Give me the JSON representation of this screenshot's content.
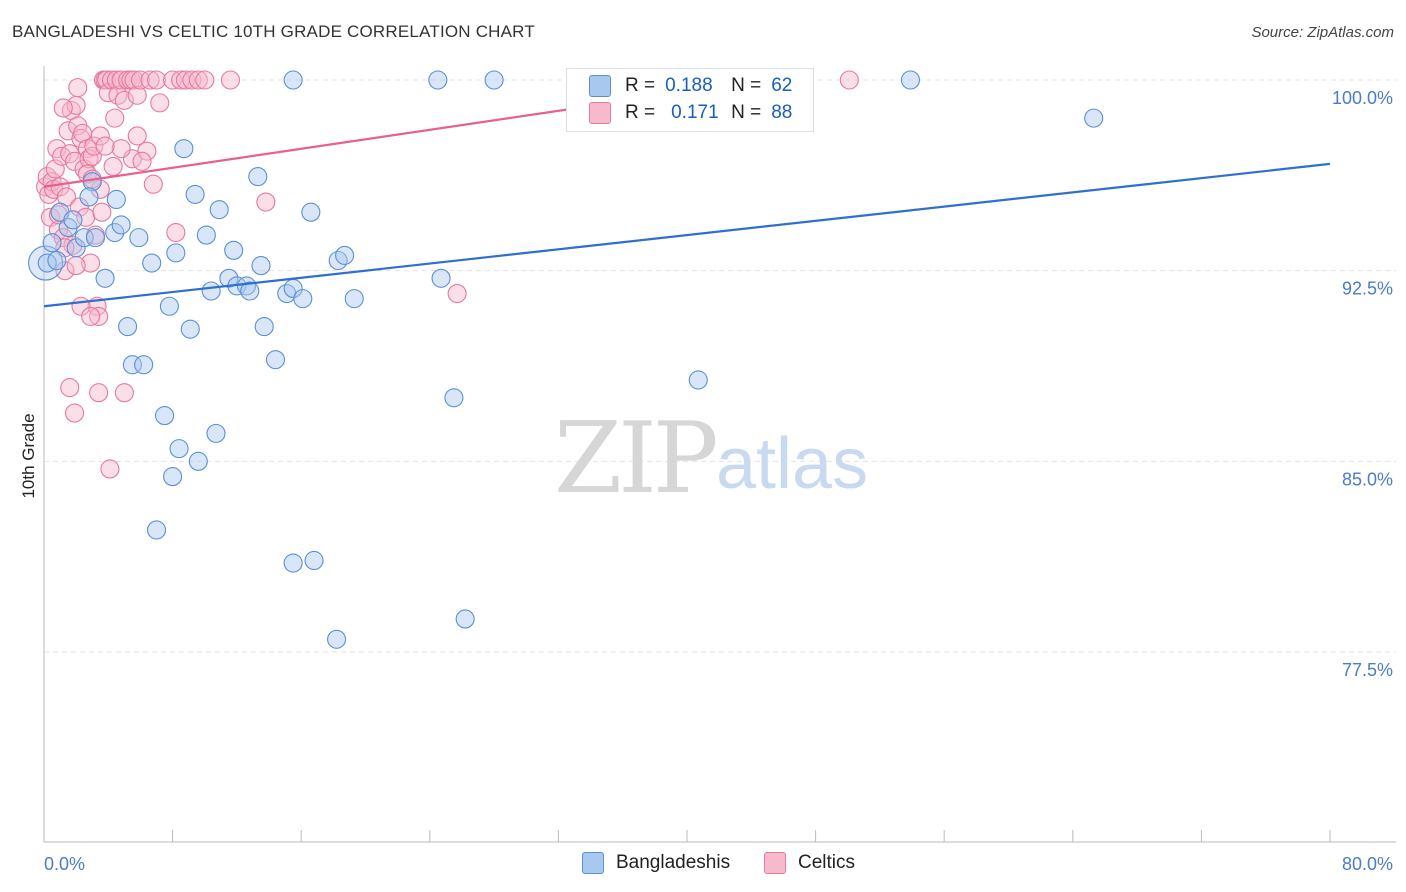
{
  "header": {
    "title": "BANGLADESHI VS CELTIC 10TH GRADE CORRELATION CHART",
    "source": "Source: ZipAtlas.com"
  },
  "watermark": {
    "zip": "ZIP",
    "atlas": "atlas"
  },
  "legend": {
    "rows": [
      {
        "r_label": "R =",
        "r_value": "0.188",
        "n_label": "N =",
        "n_value": "62"
      },
      {
        "r_label": "R =",
        "r_value": "0.171",
        "n_label": "N =",
        "n_value": "88"
      }
    ]
  },
  "bottom_legend": {
    "items": [
      "Bangladeshis",
      "Celtics"
    ]
  },
  "colors": {
    "blue_fill": "#a9c8f0",
    "blue_stroke": "#5b8fd6",
    "blue_line": "#2f6fcf",
    "pink_fill": "#f7b9cc",
    "pink_stroke": "#e8789d",
    "pink_line": "#e8608c"
  },
  "chart_data": {
    "type": "scatter",
    "title": "BANGLADESHI VS CELTIC 10TH GRADE CORRELATION CHART",
    "xlabel": "",
    "ylabel": "10th Grade",
    "xlim": [
      0,
      80
    ],
    "ylim": [
      70,
      101
    ],
    "x_tick_labels": [
      "0.0%",
      "80.0%"
    ],
    "y_ticks": [
      77.5,
      85.0,
      92.5,
      100.0
    ],
    "y_tick_labels": [
      "77.5%",
      "85.0%",
      "92.5%",
      "100.0%"
    ],
    "grid": true,
    "series": [
      {
        "name": "Bangladeshis",
        "r": 0.188,
        "n": 62,
        "trend": {
          "x": [
            0,
            80
          ],
          "y": [
            91.1,
            96.7
          ]
        },
        "points": [
          [
            0.2,
            92.8
          ],
          [
            0.5,
            93.6
          ],
          [
            0.8,
            92.9
          ],
          [
            1.0,
            94.8
          ],
          [
            1.5,
            94.2
          ],
          [
            1.8,
            94.5
          ],
          [
            2.0,
            93.4
          ],
          [
            2.5,
            93.8
          ],
          [
            3.0,
            96.0
          ],
          [
            2.8,
            95.4
          ],
          [
            3.2,
            93.8
          ],
          [
            3.8,
            92.2
          ],
          [
            4.4,
            94.0
          ],
          [
            4.5,
            95.3
          ],
          [
            4.8,
            94.3
          ],
          [
            5.2,
            90.3
          ],
          [
            5.5,
            88.8
          ],
          [
            5.9,
            93.8
          ],
          [
            6.2,
            88.8
          ],
          [
            6.7,
            92.8
          ],
          [
            7.5,
            86.8
          ],
          [
            7.8,
            91.1
          ],
          [
            8.0,
            84.4
          ],
          [
            8.2,
            93.2
          ],
          [
            8.4,
            85.5
          ],
          [
            8.7,
            97.3
          ],
          [
            9.1,
            90.2
          ],
          [
            9.4,
            95.5
          ],
          [
            9.6,
            85.0
          ],
          [
            10.1,
            93.9
          ],
          [
            10.4,
            91.7
          ],
          [
            10.7,
            86.1
          ],
          [
            10.9,
            94.9
          ],
          [
            11.5,
            92.2
          ],
          [
            11.8,
            93.3
          ],
          [
            12.0,
            91.9
          ],
          [
            12.6,
            91.9
          ],
          [
            12.8,
            91.7
          ],
          [
            13.3,
            96.2
          ],
          [
            13.5,
            92.7
          ],
          [
            13.7,
            90.3
          ],
          [
            14.4,
            89.0
          ],
          [
            15.1,
            91.6
          ],
          [
            15.5,
            91.8
          ],
          [
            16.1,
            91.4
          ],
          [
            16.6,
            94.8
          ],
          [
            18.3,
            92.9
          ],
          [
            18.7,
            93.1
          ],
          [
            19.3,
            91.4
          ],
          [
            24.7,
            92.2
          ],
          [
            25.5,
            87.5
          ],
          [
            26.2,
            78.8
          ],
          [
            16.8,
            81.1
          ],
          [
            7.0,
            82.3
          ],
          [
            18.2,
            78.0
          ],
          [
            15.5,
            81.0
          ],
          [
            40.7,
            88.2
          ],
          [
            65.3,
            98.5
          ],
          [
            15.5,
            100.0
          ],
          [
            24.5,
            100.0
          ],
          [
            28.0,
            100.0
          ],
          [
            53.9,
            100.0
          ]
        ]
      },
      {
        "name": "Celtics",
        "r": 0.171,
        "n": 88,
        "trend": {
          "x": [
            0,
            45
          ],
          "y": [
            95.8,
            100.0
          ]
        },
        "points": [
          [
            0.1,
            95.8
          ],
          [
            0.2,
            96.2
          ],
          [
            0.3,
            95.5
          ],
          [
            0.4,
            94.6
          ],
          [
            0.5,
            96.0
          ],
          [
            0.6,
            95.7
          ],
          [
            0.7,
            96.5
          ],
          [
            0.8,
            97.3
          ],
          [
            0.9,
            94.1
          ],
          [
            1.0,
            95.8
          ],
          [
            1.1,
            97.0
          ],
          [
            1.2,
            93.8
          ],
          [
            1.3,
            92.5
          ],
          [
            1.4,
            95.4
          ],
          [
            1.5,
            98.0
          ],
          [
            1.6,
            97.1
          ],
          [
            1.7,
            98.8
          ],
          [
            1.8,
            93.5
          ],
          [
            1.9,
            96.8
          ],
          [
            2.0,
            99.0
          ],
          [
            2.1,
            98.2
          ],
          [
            2.2,
            95.0
          ],
          [
            2.3,
            97.7
          ],
          [
            2.4,
            97.9
          ],
          [
            2.5,
            96.5
          ],
          [
            2.6,
            94.6
          ],
          [
            2.7,
            97.3
          ],
          [
            2.8,
            96.9
          ],
          [
            2.9,
            92.8
          ],
          [
            3.0,
            97.0
          ],
          [
            3.1,
            97.4
          ],
          [
            3.2,
            93.9
          ],
          [
            3.3,
            91.1
          ],
          [
            3.4,
            90.7
          ],
          [
            3.5,
            97.8
          ],
          [
            3.6,
            94.8
          ],
          [
            3.7,
            100.0
          ],
          [
            3.8,
            100.0
          ],
          [
            3.9,
            100.0
          ],
          [
            4.0,
            99.5
          ],
          [
            4.2,
            100.0
          ],
          [
            4.3,
            96.6
          ],
          [
            4.5,
            100.0
          ],
          [
            4.6,
            99.4
          ],
          [
            4.8,
            100.0
          ],
          [
            5.0,
            99.2
          ],
          [
            5.2,
            100.0
          ],
          [
            5.4,
            100.0
          ],
          [
            5.5,
            96.9
          ],
          [
            5.6,
            100.0
          ],
          [
            5.8,
            99.4
          ],
          [
            6.0,
            100.0
          ],
          [
            6.4,
            97.2
          ],
          [
            6.6,
            100.0
          ],
          [
            6.8,
            95.9
          ],
          [
            7.0,
            100.0
          ],
          [
            7.2,
            99.1
          ],
          [
            8.0,
            100.0
          ],
          [
            8.2,
            94.0
          ],
          [
            8.5,
            100.0
          ],
          [
            8.8,
            100.0
          ],
          [
            9.2,
            100.0
          ],
          [
            9.6,
            100.0
          ],
          [
            10.0,
            100.0
          ],
          [
            11.6,
            100.0
          ],
          [
            13.8,
            95.2
          ],
          [
            25.7,
            91.6
          ],
          [
            50.1,
            100.0
          ],
          [
            2.3,
            91.1
          ],
          [
            2.9,
            90.7
          ],
          [
            3.4,
            87.7
          ],
          [
            1.6,
            87.9
          ],
          [
            1.9,
            86.9
          ],
          [
            4.1,
            84.7
          ],
          [
            5.0,
            87.7
          ],
          [
            2.1,
            99.7
          ],
          [
            4.8,
            97.3
          ],
          [
            1.2,
            98.9
          ],
          [
            2.7,
            96.3
          ],
          [
            3.5,
            95.7
          ],
          [
            0.9,
            94.7
          ],
          [
            1.3,
            93.4
          ],
          [
            2.0,
            92.7
          ],
          [
            3.0,
            96.1
          ],
          [
            3.8,
            97.4
          ],
          [
            4.4,
            98.5
          ],
          [
            5.8,
            97.8
          ],
          [
            6.1,
            96.8
          ]
        ]
      }
    ]
  }
}
